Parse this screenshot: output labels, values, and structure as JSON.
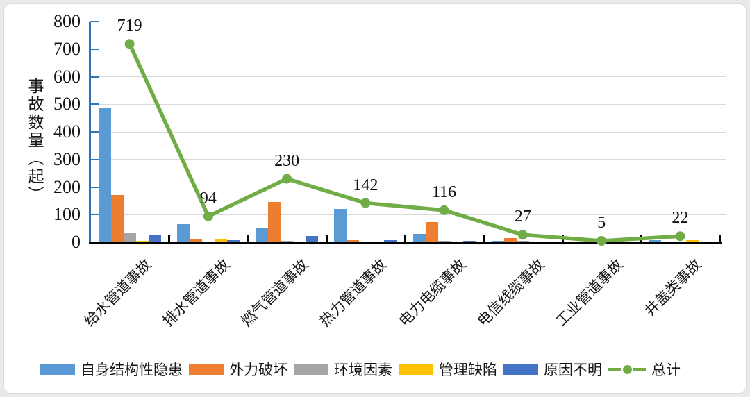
{
  "chart_data": {
    "type": "bar",
    "subtype": "grouped-bars-with-total-line",
    "title": "",
    "ylabel": "事故数量（起）",
    "xlabel": "",
    "ylim": [
      0,
      800
    ],
    "ytick_interval": 100,
    "yticks": [
      0,
      100,
      200,
      300,
      400,
      500,
      600,
      700,
      800
    ],
    "grid": true,
    "legend_position": "bottom",
    "categories": [
      "给水管道事故",
      "排水管道事故",
      "燃气管道事故",
      "热力管道事故",
      "电力电缆事故",
      "电信线缆事故",
      "工业管道事故",
      "井盖类事故"
    ],
    "series": [
      {
        "name": "自身结构性隐患",
        "color": "#5B9BD5",
        "values": [
          485,
          66,
          54,
          122,
          30,
          4,
          2,
          8
        ]
      },
      {
        "name": "外力破坏",
        "color": "#ED7D31",
        "values": [
          170,
          9,
          145,
          7,
          74,
          15,
          1,
          3
        ]
      },
      {
        "name": "环境因素",
        "color": "#A5A5A5",
        "values": [
          34,
          2,
          6,
          2,
          6,
          4,
          1,
          1
        ]
      },
      {
        "name": "管理缺陷",
        "color": "#FFC000",
        "values": [
          5,
          9,
          2,
          3,
          2,
          1,
          0,
          7
        ]
      },
      {
        "name": "原因不明",
        "color": "#4472C4",
        "values": [
          25,
          8,
          23,
          8,
          4,
          3,
          1,
          3
        ]
      }
    ],
    "line_series": {
      "name": "总计",
      "color": "#70AD47",
      "values": [
        719,
        94,
        230,
        142,
        116,
        27,
        5,
        22
      ]
    },
    "data_labels": [
      "719",
      "94",
      "230",
      "142",
      "116",
      "27",
      "5",
      "22"
    ],
    "colors": {
      "axis_y": "#2E75B6",
      "axis_x": "#000000",
      "gridline": "#d9d9d9",
      "background_card": "#ffffff",
      "background_page": "#e9eaec",
      "text": "#161616"
    }
  }
}
